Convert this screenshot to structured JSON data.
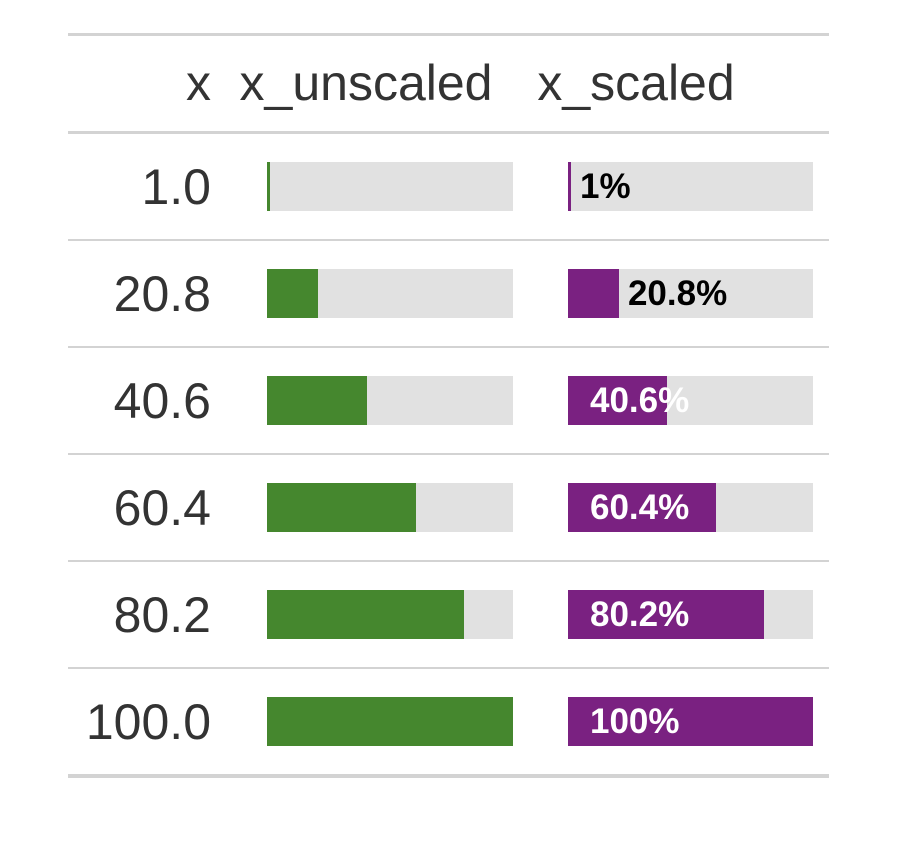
{
  "header": {
    "columns": [
      {
        "label": "x"
      },
      {
        "label": "x_unscaled"
      },
      {
        "label": "x_scaled"
      }
    ]
  },
  "rows": [
    {
      "x": "1.0",
      "pct": 1,
      "pct_label": "1%",
      "label_position": "outside"
    },
    {
      "x": "20.8",
      "pct": 20.8,
      "pct_label": "20.8%",
      "label_position": "outside"
    },
    {
      "x": "40.6",
      "pct": 40.6,
      "pct_label": "40.6%",
      "label_position": "inside"
    },
    {
      "x": "60.4",
      "pct": 60.4,
      "pct_label": "60.4%",
      "label_position": "inside"
    },
    {
      "x": "80.2",
      "pct": 80.2,
      "pct_label": "80.2%",
      "label_position": "inside"
    },
    {
      "x": "100.0",
      "pct": 100,
      "pct_label": "100%",
      "label_position": "inside"
    }
  ],
  "colors": {
    "green_fill": "#45872E",
    "purple_fill": "#7A2181",
    "bar_track": "#E1E1E1",
    "border": "#D3D3D3",
    "text": "#333333",
    "label_dark": "#000000",
    "label_light": "#FFFFFF"
  },
  "chart_data": {
    "type": "table",
    "title": "",
    "columns": [
      "x",
      "x_unscaled",
      "x_scaled"
    ],
    "rows": [
      {
        "x": 1.0,
        "x_unscaled_bar_pct": 1,
        "x_scaled_bar_pct": 1,
        "x_scaled_label": "1%"
      },
      {
        "x": 20.8,
        "x_unscaled_bar_pct": 20.8,
        "x_scaled_bar_pct": 20.8,
        "x_scaled_label": "20.8%"
      },
      {
        "x": 40.6,
        "x_unscaled_bar_pct": 40.6,
        "x_scaled_bar_pct": 40.6,
        "x_scaled_label": "40.6%"
      },
      {
        "x": 60.4,
        "x_unscaled_bar_pct": 60.4,
        "x_scaled_bar_pct": 60.4,
        "x_scaled_label": "60.4%"
      },
      {
        "x": 80.2,
        "x_unscaled_bar_pct": 80.2,
        "x_scaled_bar_pct": 80.2,
        "x_scaled_label": "80.2%"
      },
      {
        "x": 100.0,
        "x_unscaled_bar_pct": 100,
        "x_scaled_bar_pct": 100,
        "x_scaled_label": "100%"
      }
    ],
    "bar_scale": [
      0,
      100
    ],
    "notes": "Each bar column is a 0-100% filled horizontal bar; x_unscaled bars are green without labels, x_scaled bars are purple with percent labels"
  }
}
